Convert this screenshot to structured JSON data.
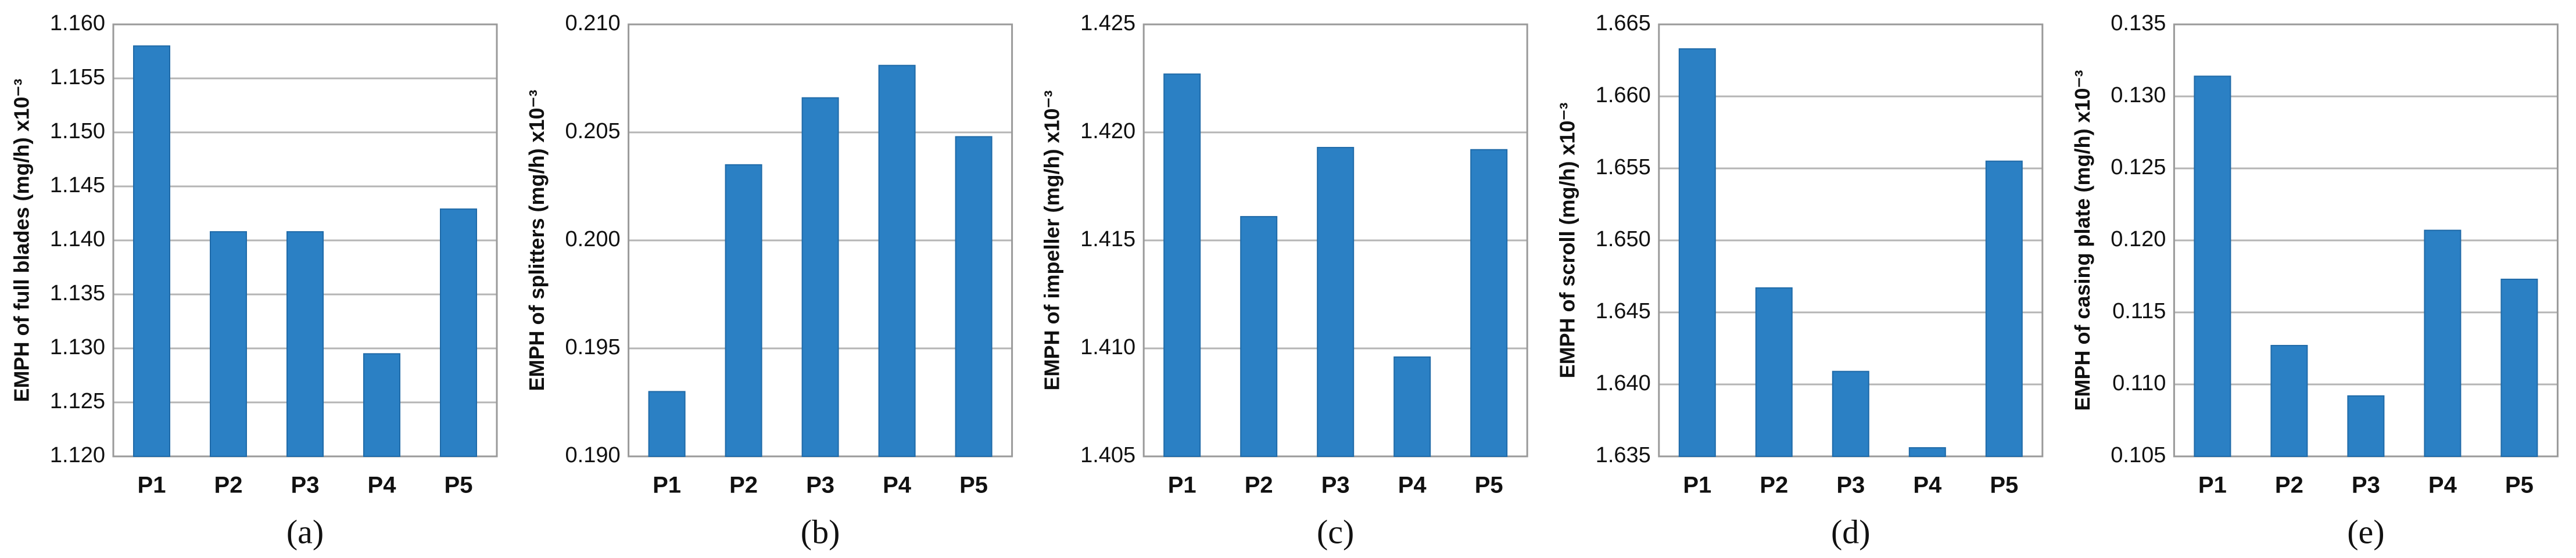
{
  "chart_data": [
    {
      "type": "bar",
      "ylabel": "EMPH of  full blades (mg/h) x10⁻³",
      "caption": "(a)",
      "categories": [
        "P1",
        "P2",
        "P3",
        "P4",
        "P5"
      ],
      "values": [
        1.158,
        1.1408,
        1.1408,
        1.1295,
        1.1429
      ],
      "color": "#2b80c4",
      "ylim": [
        1.12,
        1.16
      ],
      "yticks": [
        {
          "value": 1.12,
          "label": "1.120"
        },
        1.125,
        {
          "value": 1.13,
          "label": "1.130"
        },
        1.135,
        {
          "value": 1.14,
          "label": "1.140"
        },
        1.145,
        {
          "value": 1.15,
          "label": "1.150"
        },
        1.155,
        {
          "value": 1.16,
          "label": "1.160"
        }
      ],
      "grid": true
    },
    {
      "type": "bar",
      "ylabel": "EMPH of  splitters (mg/h) x10⁻³",
      "caption": "(b)",
      "categories": [
        "P1",
        "P2",
        "P3",
        "P4",
        "P5"
      ],
      "values": [
        0.193,
        0.2035,
        0.2066,
        0.2081,
        0.2048
      ],
      "color": "#2b80c4",
      "ylim": [
        0.19,
        0.21
      ],
      "yticks": [
        {
          "value": 0.19,
          "label": "0.190"
        },
        0.195,
        {
          "value": 0.2,
          "label": "0.200"
        },
        0.205,
        {
          "value": 0.21,
          "label": "0.210"
        }
      ],
      "grid": true
    },
    {
      "type": "bar",
      "ylabel": "EMPH of impeller (mg/h) x10⁻³",
      "caption": "(c)",
      "categories": [
        "P1",
        "P2",
        "P3",
        "P4",
        "P5"
      ],
      "values": [
        1.4227,
        1.4161,
        1.4193,
        1.4096,
        1.4192
      ],
      "color": "#2b80c4",
      "ylim": [
        1.405,
        1.425
      ],
      "yticks": [
        1.405,
        {
          "value": 1.41,
          "label": "1.410"
        },
        1.415,
        {
          "value": 1.42,
          "label": "1.420"
        },
        1.425
      ],
      "grid": true
    },
    {
      "type": "bar",
      "ylabel": "EMPH of  scroll (mg/h) x10⁻³",
      "caption": "(d)",
      "categories": [
        "P1",
        "P2",
        "P3",
        "P4",
        "P5"
      ],
      "values": [
        1.6633,
        1.6467,
        1.6409,
        1.6356,
        1.6555
      ],
      "color": "#2b80c4",
      "ylim": [
        1.635,
        1.665
      ],
      "yticks": [
        1.635,
        {
          "value": 1.64,
          "label": "1.640"
        },
        1.645,
        {
          "value": 1.65,
          "label": "1.650"
        },
        1.655,
        {
          "value": 1.66,
          "label": "1.660"
        },
        1.665
      ],
      "grid": true
    },
    {
      "type": "bar",
      "ylabel": "EMPH of casing plate (mg/h) x10⁻³",
      "caption": "(e)",
      "categories": [
        "P1",
        "P2",
        "P3",
        "P4",
        "P5"
      ],
      "values": [
        0.1314,
        0.1127,
        0.1092,
        0.1207,
        0.1173
      ],
      "color": "#2b80c4",
      "ylim": [
        0.105,
        0.135
      ],
      "yticks": [
        0.105,
        {
          "value": 0.11,
          "label": "0.110"
        },
        0.115,
        {
          "value": 0.12,
          "label": "0.120"
        },
        0.125,
        {
          "value": 0.13,
          "label": "0.130"
        },
        0.135
      ],
      "grid": true
    }
  ]
}
